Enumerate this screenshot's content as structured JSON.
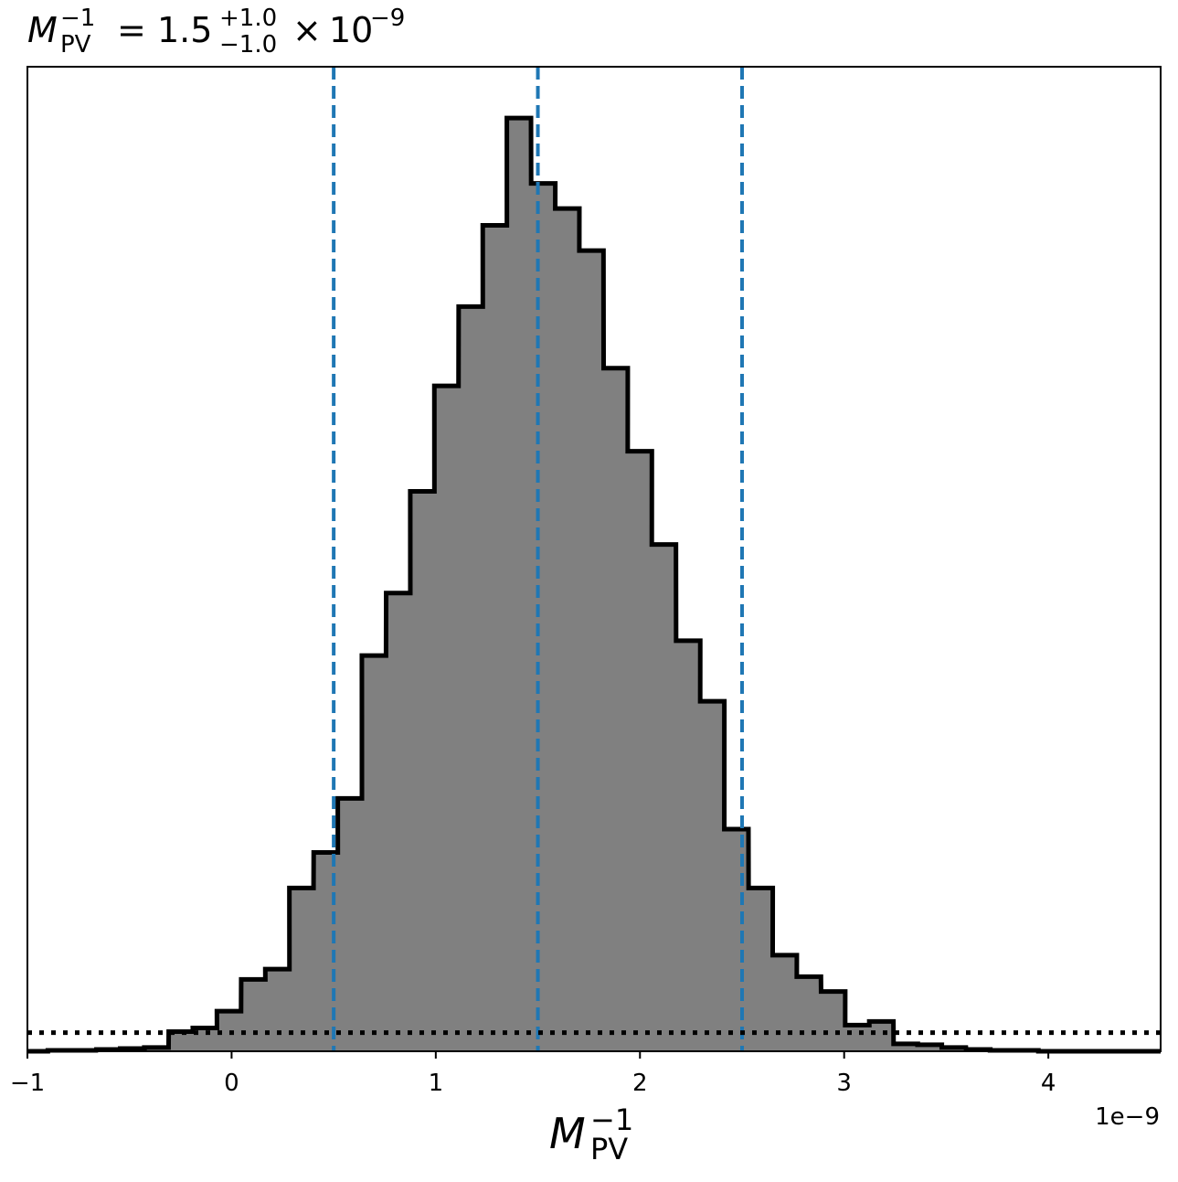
{
  "chart_data": {
    "type": "histogram",
    "title": {
      "symbol": "M",
      "sub": "PV",
      "sup": "−1",
      "eq": "=",
      "value": "1.5",
      "plus": "+1.0",
      "minus": "−1.0",
      "times": "×",
      "base": "10",
      "exp": "−9"
    },
    "xlabel": {
      "symbol": "M",
      "sub": "PV",
      "sup": "−1"
    },
    "offset_label": "1e−9",
    "x_units_scale": 1e-09,
    "xlim": [
      -1.0,
      4.55
    ],
    "ylim": [
      0,
      1.055
    ],
    "x_ticks": [
      {
        "value": -1,
        "label": "−1"
      },
      {
        "value": 0,
        "label": "0"
      },
      {
        "value": 1,
        "label": "1"
      },
      {
        "value": 2,
        "label": "2"
      },
      {
        "value": 3,
        "label": "3"
      },
      {
        "value": 4,
        "label": "4"
      }
    ],
    "bin_width": 0.1183,
    "bins": [
      {
        "x0": -0.9,
        "count": 0.001
      },
      {
        "x0": -0.782,
        "count": 0.001
      },
      {
        "x0": -0.663,
        "count": 0.002
      },
      {
        "x0": -0.545,
        "count": 0.003
      },
      {
        "x0": -0.427,
        "count": 0.004
      },
      {
        "x0": -0.308,
        "count": 0.021
      },
      {
        "x0": -0.19,
        "count": 0.025
      },
      {
        "x0": -0.072,
        "count": 0.043
      },
      {
        "x0": 0.047,
        "count": 0.077
      },
      {
        "x0": 0.165,
        "count": 0.088
      },
      {
        "x0": 0.283,
        "count": 0.175
      },
      {
        "x0": 0.402,
        "count": 0.213
      },
      {
        "x0": 0.52,
        "count": 0.271
      },
      {
        "x0": 0.638,
        "count": 0.424
      },
      {
        "x0": 0.757,
        "count": 0.491
      },
      {
        "x0": 0.875,
        "count": 0.6
      },
      {
        "x0": 0.993,
        "count": 0.713
      },
      {
        "x0": 1.112,
        "count": 0.798
      },
      {
        "x0": 1.23,
        "count": 0.885
      },
      {
        "x0": 1.348,
        "count": 1.0
      },
      {
        "x0": 1.467,
        "count": 0.93
      },
      {
        "x0": 1.585,
        "count": 0.903
      },
      {
        "x0": 1.703,
        "count": 0.858
      },
      {
        "x0": 1.822,
        "count": 0.732
      },
      {
        "x0": 1.94,
        "count": 0.643
      },
      {
        "x0": 2.058,
        "count": 0.543
      },
      {
        "x0": 2.177,
        "count": 0.44
      },
      {
        "x0": 2.295,
        "count": 0.375
      },
      {
        "x0": 2.413,
        "count": 0.238
      },
      {
        "x0": 2.532,
        "count": 0.175
      },
      {
        "x0": 2.65,
        "count": 0.103
      },
      {
        "x0": 2.768,
        "count": 0.08
      },
      {
        "x0": 2.887,
        "count": 0.064
      },
      {
        "x0": 3.005,
        "count": 0.028
      },
      {
        "x0": 3.123,
        "count": 0.032
      },
      {
        "x0": 3.242,
        "count": 0.008
      },
      {
        "x0": 3.36,
        "count": 0.007
      },
      {
        "x0": 3.478,
        "count": 0.004
      },
      {
        "x0": 3.597,
        "count": 0.002
      },
      {
        "x0": 3.715,
        "count": 0.001
      },
      {
        "x0": 3.833,
        "count": 0.001
      }
    ],
    "quantile_lines": [
      0.5,
      1.5,
      2.5
    ],
    "horizontal_reference": 0.02,
    "colors": {
      "fill": "#808080",
      "edge": "#000000",
      "quantile": "#1f77b4",
      "reference": "#000000"
    }
  }
}
